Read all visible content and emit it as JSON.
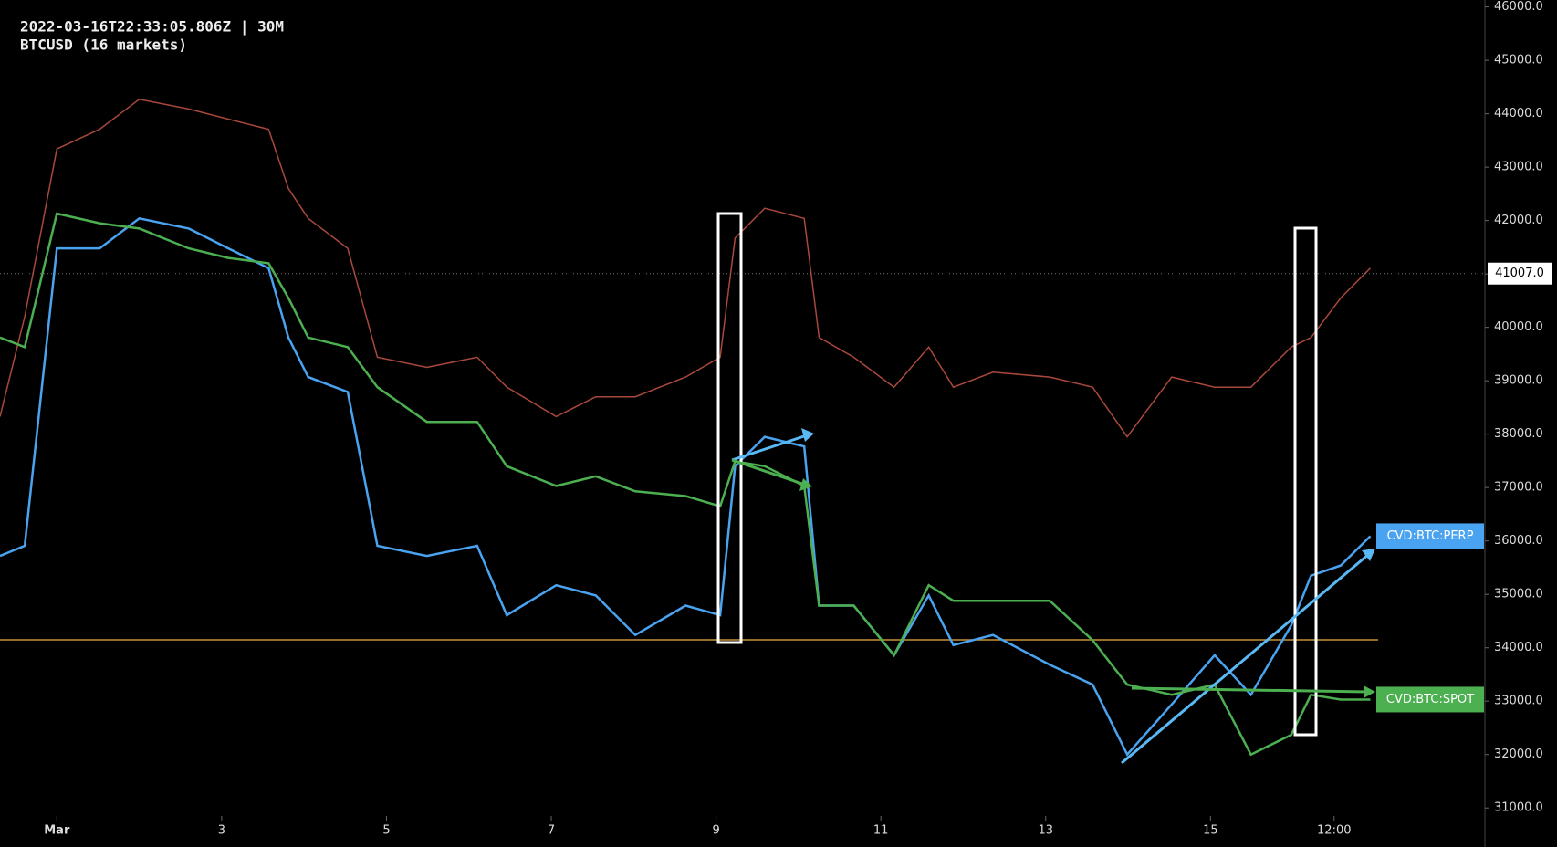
{
  "chart_data": {
    "type": "line",
    "title": "2022-03-16T22:33:05.806Z | 30M",
    "subtitle": "BTCUSD (16 markets)",
    "x": [
      0.31,
      0.61,
      1.0,
      1.52,
      2.0,
      2.6,
      3.08,
      3.57,
      3.81,
      4.05,
      4.53,
      4.89,
      5.49,
      6.1,
      6.46,
      7.06,
      7.54,
      8.02,
      8.63,
      9.05,
      9.23,
      9.59,
      10.07,
      10.25,
      10.67,
      11.16,
      11.58,
      11.88,
      12.36,
      13.05,
      13.57,
      13.99,
      14.53,
      15.05,
      15.49,
      15.98,
      16.22,
      16.58,
      16.94
    ],
    "price": {
      "color": "#a8483c",
      "values": [
        38330,
        40200,
        43340,
        43710,
        44270,
        44090,
        43900,
        43710,
        42600,
        42040,
        41480,
        39440,
        39250,
        39440,
        38880,
        38330,
        38700,
        38700,
        39070,
        39440,
        41670,
        42230,
        42040,
        39810,
        39440,
        38880,
        39630,
        38880,
        39160,
        39070,
        38880,
        37950,
        39070,
        38880,
        38880,
        39630,
        39810,
        40550,
        41110
      ]
    },
    "series": [
      {
        "name": "CVD:BTC:PERP",
        "color": "#4aa3f0",
        "values": [
          35720,
          35910,
          41480,
          41480,
          42040,
          41850,
          41480,
          41110,
          39810,
          39070,
          38790,
          35910,
          35720,
          35910,
          34610,
          35170,
          34980,
          34240,
          34790,
          34610,
          37400,
          37950,
          37770,
          34790,
          34790,
          33860,
          34980,
          34050,
          34240,
          33680,
          33310,
          32000,
          32940,
          33860,
          33120,
          34420,
          35350,
          35540,
          36090
        ]
      },
      {
        "name": "CVD:BTC:SPOT",
        "color": "#4caf50",
        "values": [
          39810,
          39630,
          42130,
          41950,
          41850,
          41480,
          41300,
          41200,
          40550,
          39810,
          39630,
          38880,
          38230,
          38230,
          37400,
          37030,
          37210,
          36930,
          36840,
          36650,
          37490,
          37400,
          37030,
          34790,
          34790,
          33860,
          35170,
          34880,
          34880,
          34880,
          34140,
          33310,
          33120,
          33310,
          32000,
          32370,
          33120,
          33030,
          33030
        ]
      }
    ],
    "last_price": {
      "value": 41007,
      "label": "41007.0"
    },
    "xlim": [
      0.31,
      18.33
    ],
    "xticks": [
      {
        "value": 1,
        "label": "Mar"
      },
      3,
      5,
      7,
      9,
      11,
      13,
      15,
      {
        "value": 16.5,
        "label": "12:00"
      }
    ],
    "ylim": [
      30850,
      46130
    ],
    "yticks": [
      {
        "value": 31000,
        "label": "31000.0"
      },
      {
        "value": 32000,
        "label": "32000.0"
      },
      {
        "value": 33000,
        "label": "33000.0"
      },
      {
        "value": 34000,
        "label": "34000.0"
      },
      {
        "value": 35000,
        "label": "35000.0"
      },
      {
        "value": 36000,
        "label": "36000.0"
      },
      {
        "value": 37000,
        "label": "37000.0"
      },
      {
        "value": 38000,
        "label": "38000.0"
      },
      {
        "value": 39000,
        "label": "39000.0"
      },
      {
        "value": 40000,
        "label": "40000.0"
      },
      {
        "value": 41000,
        "label": "41000.0"
      },
      {
        "value": 42000,
        "label": "42000.0"
      },
      {
        "value": 43000,
        "label": "43000.0"
      },
      {
        "value": 44000,
        "label": "44000.0"
      },
      {
        "value": 45000,
        "label": "45000.0"
      },
      {
        "value": 46000,
        "label": "46000.0"
      }
    ]
  }
}
